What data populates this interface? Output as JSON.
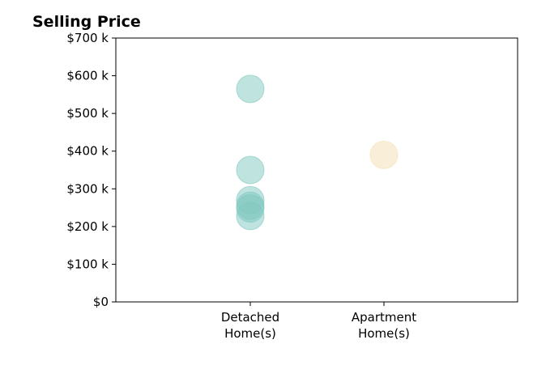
{
  "chart_data": {
    "type": "scatter",
    "title": "Selling Price",
    "xlabel": "",
    "ylabel": "",
    "categories": [
      "Detached\nHome(s)",
      "Apartment\nHome(s)"
    ],
    "ylim": [
      0,
      700000
    ],
    "yticks": [
      {
        "value": 0,
        "label": "$0"
      },
      {
        "value": 100000,
        "label": "$100 k"
      },
      {
        "value": 200000,
        "label": "$200 k"
      },
      {
        "value": 300000,
        "label": "$300 k"
      },
      {
        "value": 400000,
        "label": "$400 k"
      },
      {
        "value": 500000,
        "label": "$500 k"
      },
      {
        "value": 600000,
        "label": "$600 k"
      },
      {
        "value": 700000,
        "label": "$700 k"
      }
    ],
    "grid": false,
    "series": [
      {
        "category": "Detached\nHome(s)",
        "color": "#7fc8c0",
        "values": [
          565000,
          350000,
          270000,
          255000,
          248000,
          228000
        ]
      },
      {
        "category": "Apartment\nHome(s)",
        "color": "#f3dfb3",
        "values": [
          390000
        ]
      }
    ]
  }
}
